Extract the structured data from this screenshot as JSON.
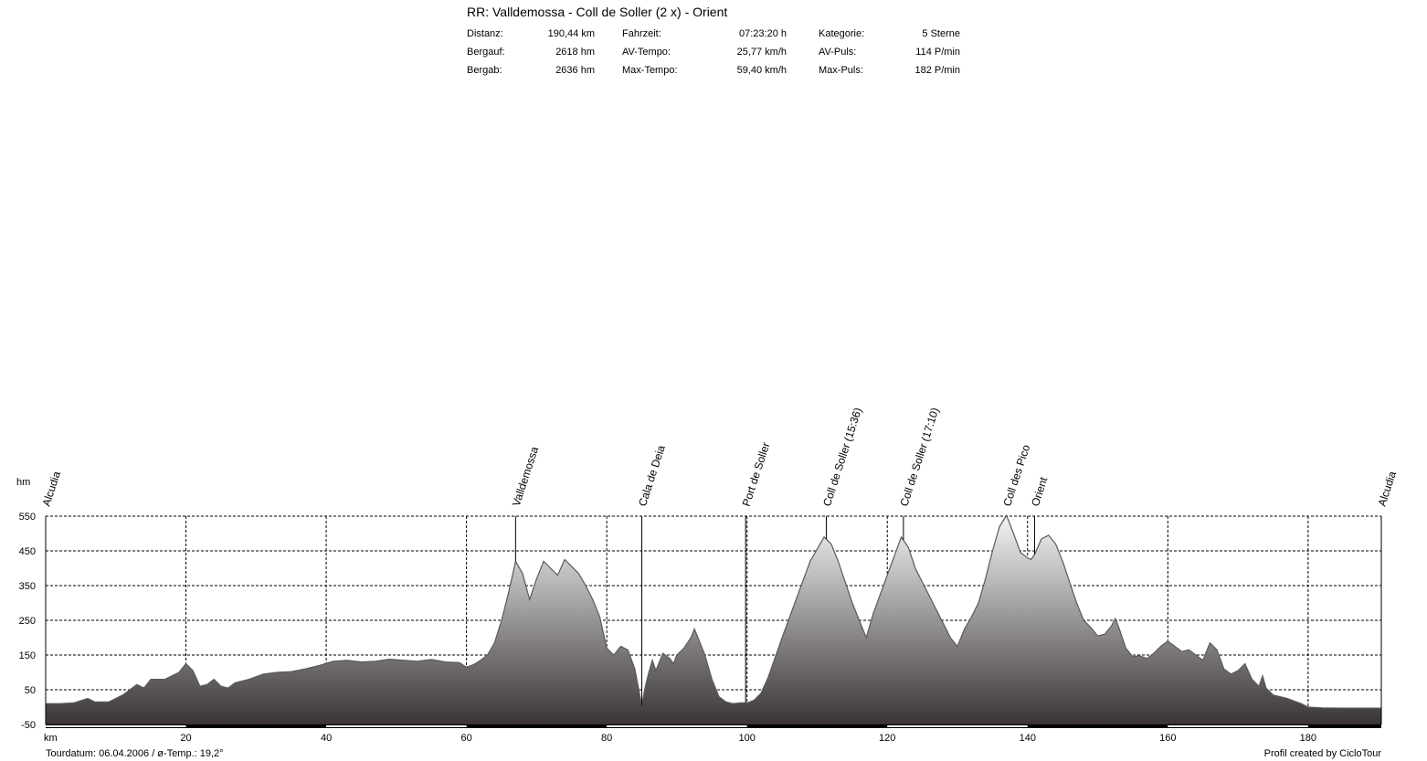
{
  "header": {
    "title": "RR: Valldemossa - Coll de Soller (2 x) - Orient",
    "stats": [
      {
        "label": "Distanz:",
        "value": "190,44 km"
      },
      {
        "label": "Bergauf:",
        "value": "2618 hm"
      },
      {
        "label": "Bergab:",
        "value": "2636 hm"
      },
      {
        "label": "Fahrzeit:",
        "value": "07:23:20 h"
      },
      {
        "label": "AV-Tempo:",
        "value": "25,77 km/h"
      },
      {
        "label": "Max-Tempo:",
        "value": "59,40 km/h"
      },
      {
        "label": "Kategorie:",
        "value": "5 Sterne"
      },
      {
        "label": "AV-Puls:",
        "value": "114 P/min"
      },
      {
        "label": "Max-Puls:",
        "value": "182 P/min"
      }
    ]
  },
  "footer": {
    "left": "Tourdatum: 06.04.2006  /  ø-Temp.: 19,2°",
    "right": "Profil created by CicloTour"
  },
  "chart_data": {
    "type": "area",
    "ylabel": "hm",
    "xlabel": "km",
    "xlim": [
      0,
      190.44
    ],
    "ylim": [
      -50,
      550
    ],
    "grid": true,
    "colors": {
      "fill_top": "#f4f4f4",
      "fill_bottom": "#3a3436",
      "outline": "#5a5a5a"
    },
    "x_ticks": [
      20,
      40,
      60,
      80,
      100,
      120,
      140,
      160,
      180
    ],
    "y_ticks": [
      550,
      450,
      350,
      250,
      150,
      50,
      -50
    ],
    "profile": [
      [
        0,
        10
      ],
      [
        2,
        10
      ],
      [
        4,
        12
      ],
      [
        6,
        25
      ],
      [
        7,
        15
      ],
      [
        9,
        15
      ],
      [
        11,
        35
      ],
      [
        13,
        65
      ],
      [
        14,
        55
      ],
      [
        15,
        80
      ],
      [
        17,
        80
      ],
      [
        19,
        100
      ],
      [
        20,
        125
      ],
      [
        21,
        105
      ],
      [
        22,
        60
      ],
      [
        23,
        65
      ],
      [
        24,
        80
      ],
      [
        25,
        60
      ],
      [
        26,
        55
      ],
      [
        27,
        70
      ],
      [
        29,
        80
      ],
      [
        31,
        95
      ],
      [
        33,
        100
      ],
      [
        35,
        102
      ],
      [
        37,
        110
      ],
      [
        39,
        120
      ],
      [
        41,
        132
      ],
      [
        43,
        135
      ],
      [
        45,
        130
      ],
      [
        47,
        132
      ],
      [
        49,
        138
      ],
      [
        51,
        135
      ],
      [
        53,
        132
      ],
      [
        55,
        137
      ],
      [
        57,
        130
      ],
      [
        59,
        128
      ],
      [
        60,
        115
      ],
      [
        61,
        122
      ],
      [
        62,
        135
      ],
      [
        63,
        150
      ],
      [
        64,
        185
      ],
      [
        65,
        250
      ],
      [
        66,
        330
      ],
      [
        67,
        420
      ],
      [
        68,
        385
      ],
      [
        69,
        310
      ],
      [
        70,
        370
      ],
      [
        71,
        420
      ],
      [
        72,
        400
      ],
      [
        73,
        380
      ],
      [
        74,
        425
      ],
      [
        75,
        405
      ],
      [
        76,
        385
      ],
      [
        77,
        350
      ],
      [
        78,
        310
      ],
      [
        79,
        260
      ],
      [
        80,
        170
      ],
      [
        81,
        150
      ],
      [
        82,
        175
      ],
      [
        83,
        165
      ],
      [
        84,
        110
      ],
      [
        85,
        5
      ],
      [
        85.5,
        60
      ],
      [
        86,
        100
      ],
      [
        86.5,
        135
      ],
      [
        87,
        105
      ],
      [
        88,
        155
      ],
      [
        89,
        140
      ],
      [
        89.5,
        125
      ],
      [
        90,
        150
      ],
      [
        91,
        170
      ],
      [
        92,
        200
      ],
      [
        92.5,
        225
      ],
      [
        93,
        200
      ],
      [
        94,
        150
      ],
      [
        95,
        80
      ],
      [
        96,
        30
      ],
      [
        97,
        15
      ],
      [
        98,
        10
      ],
      [
        99,
        12
      ],
      [
        100,
        12
      ],
      [
        101,
        20
      ],
      [
        102,
        40
      ],
      [
        103,
        85
      ],
      [
        105,
        200
      ],
      [
        107,
        310
      ],
      [
        109,
        420
      ],
      [
        111,
        490
      ],
      [
        112,
        470
      ],
      [
        113,
        420
      ],
      [
        115,
        300
      ],
      [
        117,
        200
      ],
      [
        118,
        270
      ],
      [
        120,
        380
      ],
      [
        122,
        490
      ],
      [
        123,
        460
      ],
      [
        124,
        400
      ],
      [
        126,
        320
      ],
      [
        128,
        240
      ],
      [
        129,
        200
      ],
      [
        130,
        175
      ],
      [
        131,
        225
      ],
      [
        132,
        260
      ],
      [
        133,
        300
      ],
      [
        134,
        370
      ],
      [
        135,
        450
      ],
      [
        136,
        520
      ],
      [
        137,
        552
      ],
      [
        138,
        500
      ],
      [
        139,
        445
      ],
      [
        140,
        430
      ],
      [
        140.5,
        425
      ],
      [
        141,
        440
      ],
      [
        142,
        485
      ],
      [
        143,
        495
      ],
      [
        144,
        470
      ],
      [
        145,
        420
      ],
      [
        146,
        360
      ],
      [
        147,
        300
      ],
      [
        148,
        250
      ],
      [
        149,
        230
      ],
      [
        150,
        205
      ],
      [
        151,
        210
      ],
      [
        152,
        235
      ],
      [
        152.5,
        255
      ],
      [
        153,
        230
      ],
      [
        154,
        170
      ],
      [
        155,
        145
      ],
      [
        156,
        148
      ],
      [
        157,
        140
      ],
      [
        158,
        155
      ],
      [
        159,
        175
      ],
      [
        160,
        190
      ],
      [
        161,
        175
      ],
      [
        162,
        160
      ],
      [
        163,
        165
      ],
      [
        164,
        150
      ],
      [
        165,
        135
      ],
      [
        166,
        185
      ],
      [
        167,
        165
      ],
      [
        168,
        110
      ],
      [
        169,
        95
      ],
      [
        170,
        105
      ],
      [
        171,
        125
      ],
      [
        172,
        80
      ],
      [
        173,
        60
      ],
      [
        173.5,
        90
      ],
      [
        174,
        55
      ],
      [
        175,
        35
      ],
      [
        177,
        25
      ],
      [
        179,
        10
      ],
      [
        180,
        0
      ],
      [
        182,
        -2
      ],
      [
        185,
        -3
      ],
      [
        188,
        -3
      ],
      [
        190.44,
        -3
      ]
    ],
    "waypoints": [
      {
        "name": "Alcudia",
        "km": 0
      },
      {
        "name": "Valldemossa",
        "km": 67
      },
      {
        "name": "Cala de Deia",
        "km": 85
      },
      {
        "name": "Port de Soller",
        "km": 99.8
      },
      {
        "name": "Coll de Soller (15:36)",
        "km": 111.3
      },
      {
        "name": "Coll de Soller (17:10)",
        "km": 122.3
      },
      {
        "name": "Coll des Pico",
        "km": 137
      },
      {
        "name": "Orient",
        "km": 141
      },
      {
        "name": "Alcudia",
        "km": 190.44
      }
    ]
  }
}
